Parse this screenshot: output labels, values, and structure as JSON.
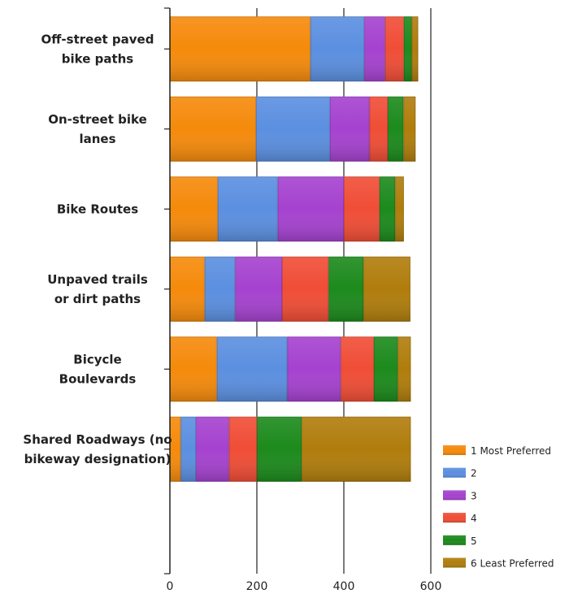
{
  "chart_data": {
    "type": "bar",
    "orientation": "horizontal",
    "stacked": true,
    "categories": [
      [
        "Off-street paved",
        "bike paths"
      ],
      [
        "On-street bike",
        "lanes"
      ],
      [
        "Bike Routes"
      ],
      [
        "Unpaved trails",
        "or dirt paths"
      ],
      [
        "Bicycle",
        "Boulevards"
      ],
      [
        "Shared Roadways (no",
        "bikeway designation)"
      ]
    ],
    "series": [
      {
        "name": "1 Most Preferred",
        "color": "#f58a0b",
        "values": [
          323,
          198,
          110,
          80,
          108,
          25
        ]
      },
      {
        "name": "2",
        "color": "#5b8fe0",
        "values": [
          124,
          170,
          138,
          70,
          162,
          35
        ]
      },
      {
        "name": "3",
        "color": "#a542cf",
        "values": [
          48,
          91,
          152,
          108,
          123,
          76
        ]
      },
      {
        "name": "4",
        "color": "#f04d36",
        "values": [
          43,
          42,
          82,
          107,
          76,
          64
        ]
      },
      {
        "name": "5",
        "color": "#1c8a1c",
        "values": [
          18,
          36,
          36,
          80,
          55,
          103
        ]
      },
      {
        "name": "6 Least Preferred",
        "color": "#b07d0c",
        "values": [
          15,
          28,
          20,
          108,
          30,
          251
        ]
      }
    ],
    "xticks": [
      0,
      200,
      400,
      600
    ],
    "xlim": [
      0,
      600
    ],
    "grid": true,
    "legend_position": "bottom-right"
  }
}
